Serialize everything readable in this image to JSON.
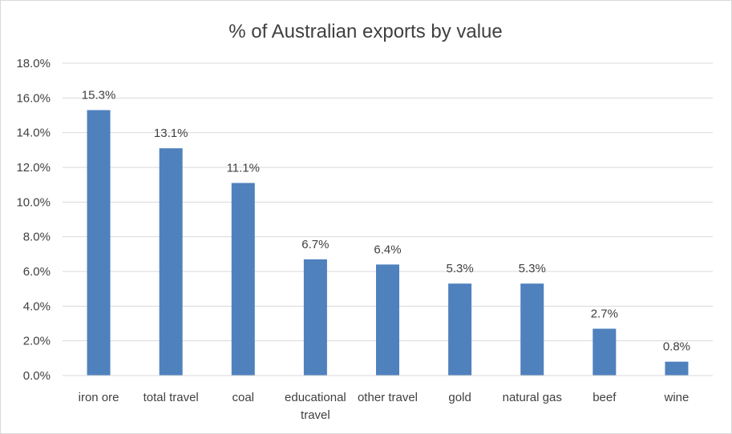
{
  "chart_data": {
    "type": "bar",
    "title": "% of Australian exports by value",
    "categories": [
      "iron ore",
      "total travel",
      "coal",
      "educational travel",
      "other travel",
      "gold",
      "natural gas",
      "beef",
      "wine"
    ],
    "category_lines": [
      [
        "iron ore"
      ],
      [
        "total travel"
      ],
      [
        "coal"
      ],
      [
        "educational",
        "travel"
      ],
      [
        "other travel"
      ],
      [
        "gold"
      ],
      [
        "natural gas"
      ],
      [
        "beef"
      ],
      [
        "wine"
      ]
    ],
    "values": [
      15.3,
      13.1,
      11.1,
      6.7,
      6.4,
      5.3,
      5.3,
      2.7,
      0.8
    ],
    "data_labels": [
      "15.3%",
      "13.1%",
      "11.1%",
      "6.7%",
      "6.4%",
      "5.3%",
      "5.3%",
      "2.7%",
      "0.8%"
    ],
    "y_ticks": [
      0,
      2,
      4,
      6,
      8,
      10,
      12,
      14,
      16,
      18
    ],
    "y_tick_labels": [
      "0.0%",
      "2.0%",
      "4.0%",
      "6.0%",
      "8.0%",
      "10.0%",
      "12.0%",
      "14.0%",
      "16.0%",
      "18.0%"
    ],
    "ylim": [
      0,
      18
    ],
    "grid": true,
    "legend": "none",
    "bar_color": "#4f81bd",
    "xlabel": "",
    "ylabel": ""
  }
}
